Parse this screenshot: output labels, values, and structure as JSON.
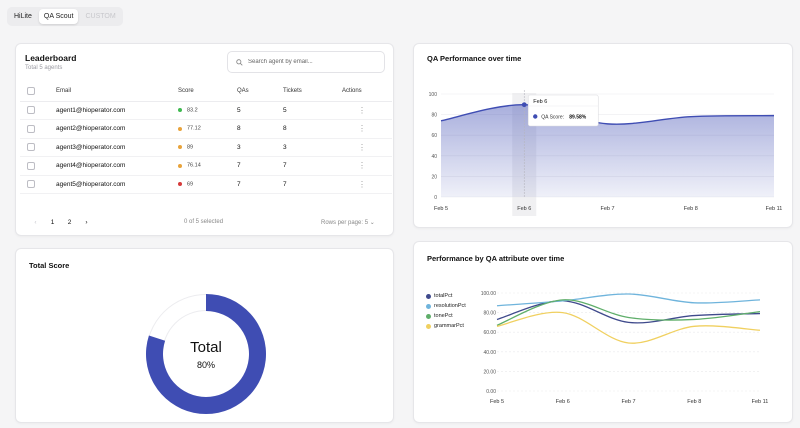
{
  "tabs": [
    {
      "label": "HiLite",
      "active": false,
      "disabled": false
    },
    {
      "label": "QA Scout",
      "active": true,
      "disabled": false
    },
    {
      "label": "CUSTOM",
      "active": false,
      "disabled": true
    }
  ],
  "leaderboard": {
    "title": "Leaderboard",
    "subtitle": "Total 5 agents",
    "search_placeholder": "Search agent by email...",
    "columns": [
      "Email",
      "Score",
      "QAs",
      "Tickets",
      "Actions"
    ],
    "rows": [
      {
        "email": "agent1@hioperator.com",
        "score": "83.2",
        "score_color": "#3fb950",
        "qas": "5",
        "tickets": "5"
      },
      {
        "email": "agent2@hioperator.com",
        "score": "77.12",
        "score_color": "#e8a33b",
        "qas": "8",
        "tickets": "8"
      },
      {
        "email": "agent3@hioperator.com",
        "score": "89",
        "score_color": "#e8a33b",
        "qas": "3",
        "tickets": "3"
      },
      {
        "email": "agent4@hioperator.com",
        "score": "76.14",
        "score_color": "#e8a33b",
        "qas": "7",
        "tickets": "7"
      },
      {
        "email": "agent5@hioperator.com",
        "score": "69",
        "score_color": "#d63b3b",
        "qas": "7",
        "tickets": "7"
      }
    ],
    "pages": [
      "1",
      "2"
    ],
    "selected_text": "0 of 5 selected",
    "rows_per_page": "Rows per page: 5"
  },
  "total_score": {
    "title": "Total Score",
    "center_label": "Total",
    "center_value": "80%",
    "fraction": 0.8,
    "fill_color": "#3f4db3",
    "track_color": "#ffffff"
  },
  "perf_chart": {
    "title": "QA Performance over time",
    "tooltip_date": "Feb 6",
    "tooltip_label": "QA Score:",
    "tooltip_value": "89.58%",
    "chart_data": {
      "type": "area",
      "x": [
        "Feb 5",
        "Feb 6",
        "Feb 7",
        "Feb 8",
        "Feb 11"
      ],
      "series": [
        {
          "name": "QA Score",
          "values": [
            74,
            89.58,
            71,
            78,
            79
          ]
        }
      ],
      "ylim": [
        0,
        100
      ],
      "yticks": [
        0,
        20,
        40,
        60,
        80,
        100
      ],
      "color": "#3f4db3"
    }
  },
  "attr_chart": {
    "title": "Performance by QA attribute over time",
    "chart_data": {
      "type": "line",
      "x": [
        "Feb 5",
        "Feb 6",
        "Feb 7",
        "Feb 8",
        "Feb 11"
      ],
      "ylim": [
        0,
        100
      ],
      "yticks": [
        "0.00",
        "20.00",
        "40.00",
        "60.00",
        "80.00",
        "100.00"
      ],
      "series": [
        {
          "name": "totalPct",
          "color": "#3f4a8c",
          "values": [
            73,
            92,
            70,
            77,
            79
          ]
        },
        {
          "name": "resolutionPct",
          "color": "#6fb4dc",
          "values": [
            87,
            92,
            99,
            90,
            93
          ]
        },
        {
          "name": "tonePct",
          "color": "#5fae6a",
          "values": [
            67,
            93,
            75,
            73,
            81
          ]
        },
        {
          "name": "grammarPct",
          "color": "#f0d060",
          "values": [
            66,
            80,
            49,
            66,
            62
          ]
        }
      ]
    }
  }
}
